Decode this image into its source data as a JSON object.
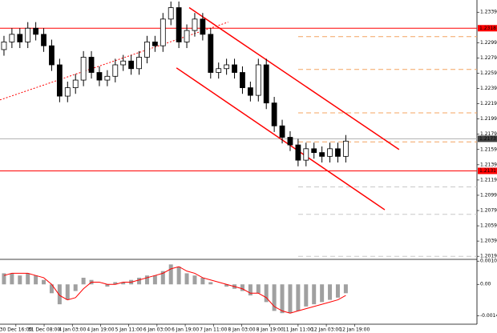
{
  "chart_data": {
    "type": "candlestick",
    "xlim": [
      -0.5,
      59.5
    ],
    "xticks": [
      {
        "value": 1.5,
        "label": "30 Dec 16:00"
      },
      {
        "value": 5.05,
        "label": "31 Dec 08:00"
      },
      {
        "value": 8.6,
        "label": "4 Jan 03:00"
      },
      {
        "value": 12.15,
        "label": "4 Jan 19:00"
      },
      {
        "value": 15.7,
        "label": "5 Jan 11:00"
      },
      {
        "value": 19.25,
        "label": "6 Jan 03:00"
      },
      {
        "value": 22.8,
        "label": "6 Jan 19:00"
      },
      {
        "value": 26.35,
        "label": "7 Jan 11:00"
      },
      {
        "value": 29.9,
        "label": "8 Jan 03:00"
      },
      {
        "value": 33.45,
        "label": "8 Jan 19:00"
      },
      {
        "value": 37,
        "label": "11 Jan 11:00"
      },
      {
        "value": 40.55,
        "label": "12 Jan 03:00"
      },
      {
        "value": 44.1,
        "label": "12 Jan 19:00"
      }
    ],
    "ylim": [
      1.2015,
      1.2355
    ],
    "yticks": [
      1.2339,
      1.2299,
      1.2279,
      1.2259,
      1.2239,
      1.2219,
      1.2199,
      1.2179,
      1.2159,
      1.2139,
      1.2119,
      1.2099,
      1.2079,
      1.2059,
      1.2039,
      1.2019
    ],
    "open": [
      1.229,
      1.23,
      1.231,
      1.23,
      1.2318,
      1.231,
      1.2295,
      1.227,
      1.2229,
      1.224,
      1.225,
      1.228,
      1.226,
      1.225,
      1.2255,
      1.227,
      1.2275,
      1.2265,
      1.228,
      1.23,
      1.2295,
      1.233,
      1.2345,
      1.23,
      1.2315,
      1.233,
      1.231,
      1.226,
      1.2265,
      1.227,
      1.226,
      1.224,
      1.223,
      1.227,
      1.222,
      1.219,
      1.2175,
      1.2165,
      1.2145,
      1.216,
      1.2155,
      1.215,
      1.216,
      1.215
    ],
    "high": [
      1.2308,
      1.2318,
      1.2318,
      1.2326,
      1.2326,
      1.2318,
      1.2303,
      1.2278,
      1.2248,
      1.2258,
      1.2288,
      1.2288,
      1.2268,
      1.2263,
      1.2278,
      1.2283,
      1.2283,
      1.2288,
      1.2308,
      1.2308,
      1.2338,
      1.2353,
      1.2353,
      1.2323,
      1.2338,
      1.2338,
      1.2318,
      1.2273,
      1.2278,
      1.2278,
      1.2268,
      1.2248,
      1.2278,
      1.2278,
      1.2228,
      1.2198,
      1.2183,
      1.2173,
      1.2168,
      1.2168,
      1.2163,
      1.2168,
      1.2168,
      1.2178
    ],
    "low": [
      1.2282,
      1.2292,
      1.2292,
      1.2292,
      1.2302,
      1.2287,
      1.2262,
      1.2221,
      1.2221,
      1.2232,
      1.2242,
      1.2252,
      1.2242,
      1.2242,
      1.2247,
      1.2262,
      1.2257,
      1.2257,
      1.2272,
      1.2287,
      1.2287,
      1.2322,
      1.2292,
      1.2292,
      1.2307,
      1.2302,
      1.2252,
      1.2252,
      1.2257,
      1.2252,
      1.2232,
      1.2222,
      1.2222,
      1.2212,
      1.2182,
      1.2167,
      1.2157,
      1.2137,
      1.2137,
      1.2147,
      1.2142,
      1.2142,
      1.2142,
      1.2142
    ],
    "close": [
      1.23,
      1.231,
      1.23,
      1.2318,
      1.231,
      1.2295,
      1.227,
      1.2229,
      1.224,
      1.225,
      1.228,
      1.226,
      1.225,
      1.2255,
      1.227,
      1.2275,
      1.2265,
      1.228,
      1.23,
      1.2295,
      1.233,
      1.2345,
      1.23,
      1.2315,
      1.233,
      1.231,
      1.226,
      1.2265,
      1.227,
      1.226,
      1.224,
      1.223,
      1.227,
      1.222,
      1.219,
      1.2175,
      1.2165,
      1.2145,
      1.216,
      1.2155,
      1.215,
      1.216,
      1.215,
      1.217
    ],
    "hlines": [
      {
        "value": 1.2318,
        "color": "#ff0000"
      },
      {
        "value": 1.2131,
        "color": "#ff0000"
      },
      {
        "value": 1.2173,
        "color": "#b0b0b0"
      }
    ],
    "levels": [
      {
        "value": 1.2307,
        "color": "#f4a460"
      },
      {
        "value": 1.2264,
        "color": "#f4a460"
      },
      {
        "value": 1.2207,
        "color": "#f4a460"
      },
      {
        "value": 1.2169,
        "color": "#f4a460"
      },
      {
        "value": 1.211,
        "color": "#c8c8c8"
      },
      {
        "value": 1.2074,
        "color": "#c8c8c8"
      },
      {
        "value": 1.2019,
        "color": "#c8c8c8"
      }
    ],
    "trendlines": [
      {
        "x": [
          23.3,
          49.7
        ],
        "y": [
          1.2345,
          1.2159
        ],
        "color": "#ff0000",
        "style": "solid"
      },
      {
        "x": [
          21.7,
          47.9
        ],
        "y": [
          1.2266,
          1.208
        ],
        "color": "#ff0000",
        "style": "solid"
      },
      {
        "x": [
          -0.5,
          28.2
        ],
        "y": [
          1.2224,
          1.2326
        ],
        "color": "#ff0000",
        "style": "dotted"
      }
    ],
    "macd": {
      "type": "bar",
      "ylim": [
        -0.0018,
        0.00113
      ],
      "yticks": [
        0.00105,
        {
          "value": 0,
          "label": "0.00"
        },
        -0.00142
      ],
      "values": [
        0.0005,
        0.0005,
        0.0004,
        0.0005,
        0.0004,
        0.0002,
        -0.0004,
        -0.0009,
        -0.0007,
        -0.0003,
        0.0003,
        0.0002,
        0.0,
        -0.0001,
        0.0001,
        0.0001,
        0.0002,
        0.0003,
        0.0004,
        0.0004,
        0.0006,
        0.0009,
        0.0008,
        0.0005,
        0.0004,
        0.0003,
        0.0001,
        0.0,
        -0.0001,
        -0.0002,
        -0.0003,
        -0.0005,
        -0.0004,
        -0.0008,
        -0.0012,
        -0.0013,
        -0.0013,
        -0.0012,
        -0.001,
        -0.0009,
        -0.0008,
        -0.0007,
        -0.0006,
        -0.0004
      ],
      "color": "#a0a0a0",
      "signal": [
        0.0004,
        0.0005,
        0.0005,
        0.0005,
        0.0004,
        0.0003,
        0.0,
        -0.0005,
        -0.0007,
        -0.0006,
        -0.0002,
        0.0001,
        0.0001,
        0.0,
        0.0,
        0.0001,
        0.0001,
        0.0002,
        0.0003,
        0.0004,
        0.0005,
        0.0007,
        0.0008,
        0.0006,
        0.0005,
        0.0003,
        0.0002,
        0.0001,
        0.0,
        -0.0001,
        -0.0002,
        -0.0004,
        -0.0004,
        -0.0006,
        -0.001,
        -0.0012,
        -0.0013,
        -0.0012,
        -0.0011,
        -0.001,
        -0.0009,
        -0.0008,
        -0.0007,
        -0.0005
      ],
      "signal_color": "#ff0000"
    }
  }
}
